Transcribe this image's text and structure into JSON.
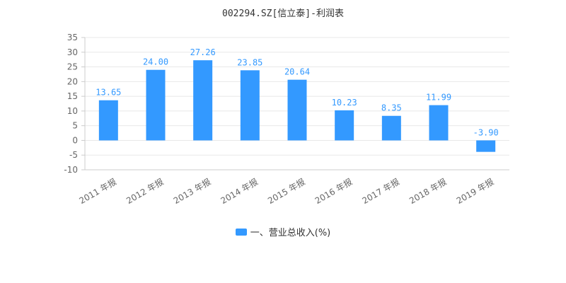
{
  "chart_data": {
    "type": "bar",
    "title": "002294.SZ[信立泰]-利润表",
    "categories": [
      "2011 年报",
      "2012 年报",
      "2013 年报",
      "2014 年报",
      "2015 年报",
      "2016 年报",
      "2017 年报",
      "2018 年报",
      "2019 年报"
    ],
    "series": [
      {
        "name": "一、营业总收入(%)",
        "values": [
          13.65,
          24.0,
          27.26,
          23.85,
          20.64,
          10.23,
          8.35,
          11.99,
          -3.9
        ],
        "labels": [
          "13.65",
          "24.00",
          "27.26",
          "23.85",
          "20.64",
          "10.23",
          "8.35",
          "11.99",
          "-3.90"
        ],
        "color": "#3399ff"
      }
    ],
    "yticks": [
      35,
      30,
      25,
      20,
      15,
      10,
      5,
      0,
      -5,
      -10
    ],
    "ylim": [
      -10,
      35
    ],
    "xlabel": "",
    "ylabel": "",
    "grid": true,
    "legend_position": "bottom-center",
    "colors": {
      "bar": "#3399ff",
      "data_label": "#3399ff",
      "grid": "#e8e8e8",
      "axis": "#cccccc"
    }
  }
}
